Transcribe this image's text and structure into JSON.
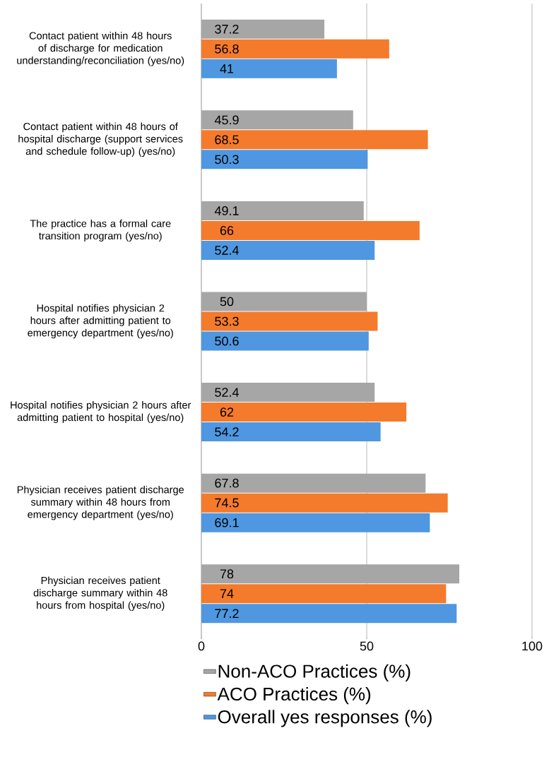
{
  "chart_data": {
    "type": "bar",
    "orientation": "horizontal",
    "categories": [
      "Contact patient within 48 hours of discharge for medication understanding/reconciliation (yes/no)",
      "Contact patient within 48 hours of hospital discharge (support services and schedule follow-up) (yes/no)",
      "The practice has a formal care transition program (yes/no)",
      "Hospital notifies physician 2 hours after admitting patient to emergency department (yes/no)",
      "Hospital notifies physician 2 hours after admitting patient to hospital (yes/no)",
      "Physician receives patient discharge summary within 48 hours from emergency department (yes/no)",
      "Physician receives patient discharge summary within 48 hours from hospital (yes/no)"
    ],
    "series": [
      {
        "name": "Non-ACO Practices (%)",
        "color": "#a6a6a6",
        "values": [
          37.2,
          45.9,
          49.1,
          50,
          52.4,
          67.8,
          78
        ]
      },
      {
        "name": "ACO Practices (%)",
        "color": "#f47a2c",
        "values": [
          56.8,
          68.5,
          66,
          53.3,
          62,
          74.5,
          74
        ]
      },
      {
        "name": "Overall yes responses (%)",
        "color": "#4f97e0",
        "values": [
          41,
          50.3,
          52.4,
          50.6,
          54.2,
          69.1,
          77.2
        ]
      }
    ],
    "xlim": [
      0,
      100
    ],
    "xticks": [
      0,
      50,
      100
    ],
    "grid": "x",
    "legend": "bottom",
    "data_labels": true
  }
}
